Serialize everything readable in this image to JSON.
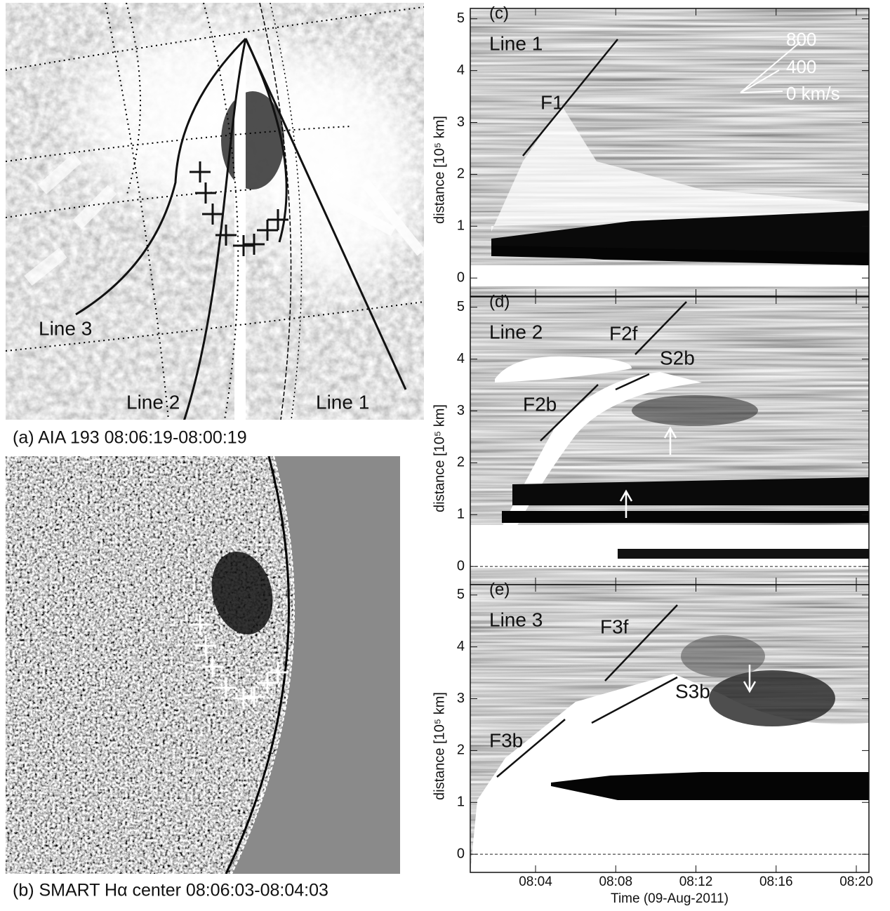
{
  "panel_a": {
    "caption": "(a) AIA 193 08:06:19-08:00:19",
    "line_labels": [
      "Line 3",
      "Line 2",
      "Line 1"
    ]
  },
  "panel_b": {
    "caption": "(b) SMART Hα center 08:06:03-08:04:03"
  },
  "plots": [
    {
      "label": "(c)",
      "line": "Line 1",
      "annotations": [
        "F1"
      ]
    },
    {
      "label": "(d)",
      "line": "Line 2",
      "annotations": [
        "F2f",
        "S2b",
        "F2b"
      ]
    },
    {
      "label": "(e)",
      "line": "Line 3",
      "annotations": [
        "F3f",
        "S3b",
        "F3b"
      ]
    }
  ],
  "velocity_scale": [
    "800",
    "400",
    "0 km/s"
  ],
  "axes": {
    "y_label": "distance [10⁵ km]",
    "ylim": [
      -0.35,
      5.2
    ],
    "yticks": [
      0,
      1,
      2,
      3,
      4,
      5
    ],
    "xticks": [
      "08:04",
      "08:08",
      "08:12",
      "08:16",
      "08:20"
    ],
    "x_label": "Time (09-Aug-2011)"
  }
}
